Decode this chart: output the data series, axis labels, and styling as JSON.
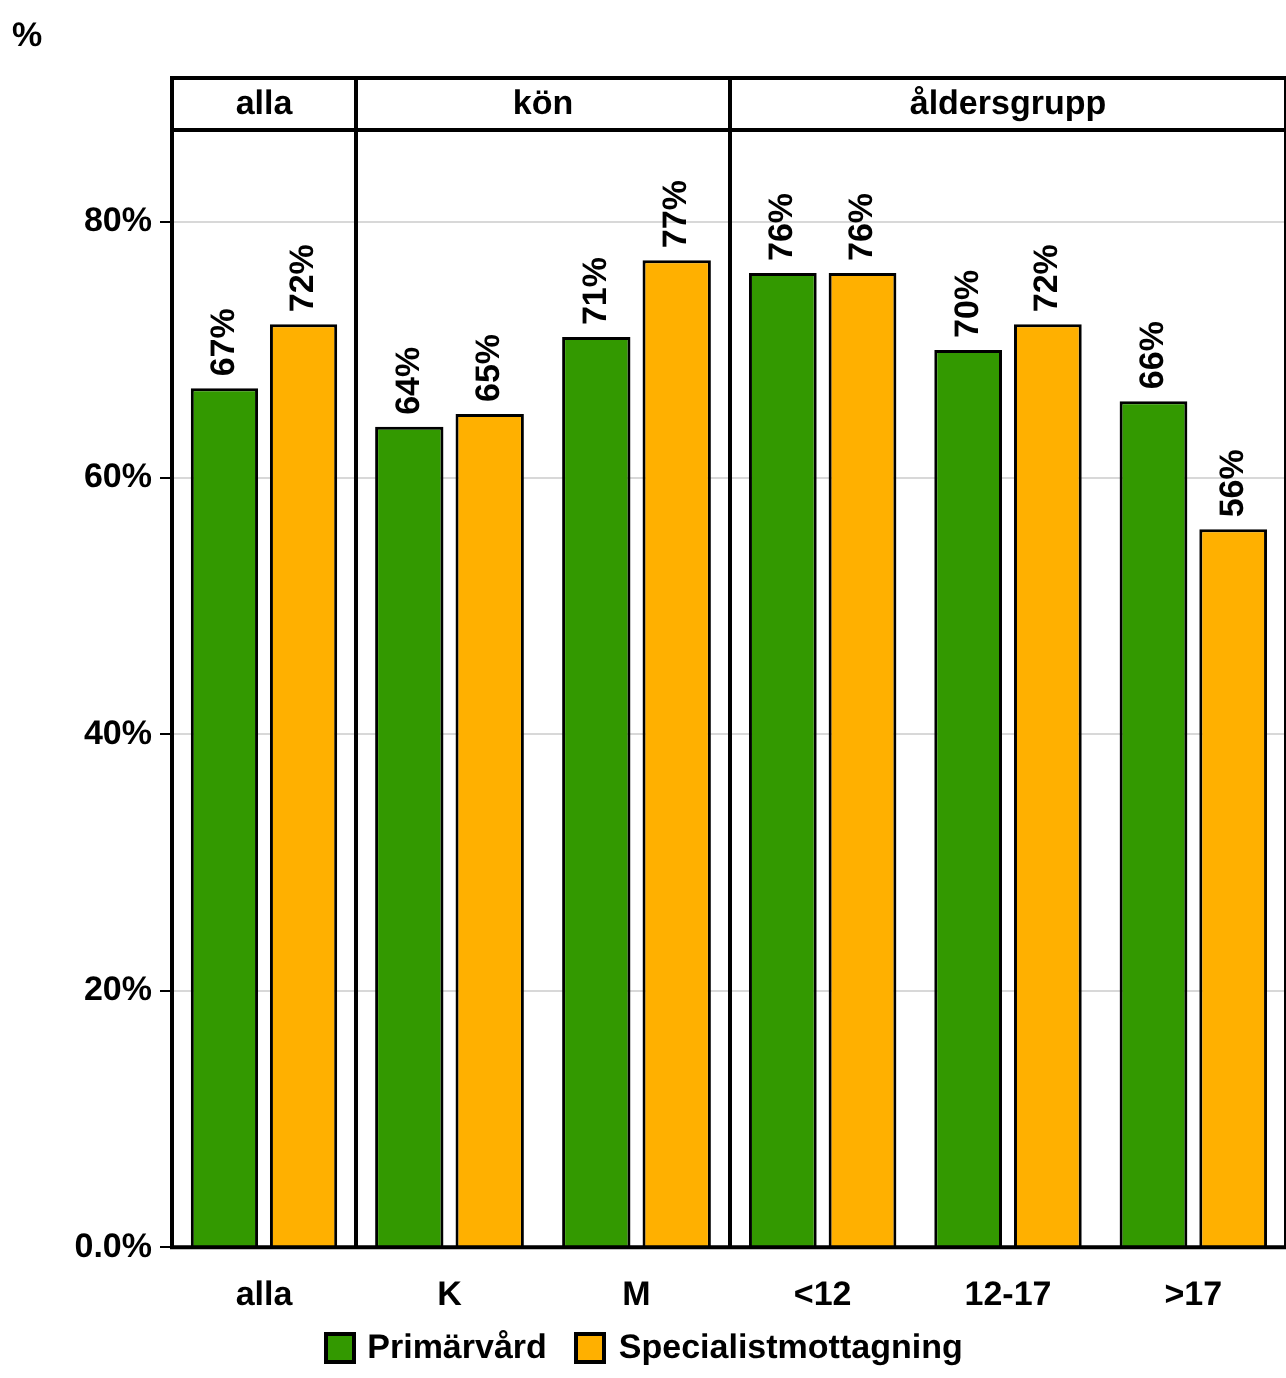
{
  "chart_data": [
    {
      "type": "bar",
      "title": "alla",
      "ylabel": "%",
      "categories": [
        "alla"
      ],
      "ylim": [
        0,
        87
      ],
      "yticks": [
        {
          "value": 0,
          "label": "0.0%"
        },
        {
          "value": 20,
          "label": "20%"
        },
        {
          "value": 40,
          "label": "40%"
        },
        {
          "value": 60,
          "label": "60%"
        },
        {
          "value": 80,
          "label": "80%"
        }
      ],
      "grid": "y",
      "legend": "bottom",
      "series": [
        {
          "name": "Primärvård",
          "color": "#339900",
          "values": [
            67
          ],
          "value_labels": [
            "67%"
          ]
        },
        {
          "name": "Specialistmottagning",
          "color": "#ffb000",
          "values": [
            72
          ],
          "value_labels": [
            "72%"
          ]
        }
      ]
    },
    {
      "type": "bar",
      "title": "kön",
      "categories": [
        "K",
        "M"
      ],
      "ylim": [
        0,
        87
      ],
      "yticks": [
        0,
        20,
        40,
        60,
        80
      ],
      "grid": "y",
      "tick_labels": "x",
      "series": [
        {
          "color": "#339900",
          "values": [
            64,
            71
          ],
          "value_labels": [
            "64%",
            "71%"
          ]
        },
        {
          "color": "#ffb000",
          "values": [
            65,
            77
          ],
          "value_labels": [
            "65%",
            "77%"
          ]
        }
      ]
    },
    {
      "type": "bar",
      "title": "åldersgrupp",
      "categories": [
        "<12",
        "12-17",
        ">17"
      ],
      "ylim": [
        0,
        87
      ],
      "yticks": [
        0,
        20,
        40,
        60,
        80
      ],
      "grid": "y",
      "tick_labels": "x",
      "series": [
        {
          "color": "#339900",
          "values": [
            76,
            70,
            66
          ],
          "value_labels": [
            "76%",
            "70%",
            "66%"
          ]
        },
        {
          "color": "#ffb000",
          "values": [
            76,
            72,
            56
          ],
          "value_labels": [
            "76%",
            "72%",
            "56%"
          ]
        }
      ]
    }
  ]
}
